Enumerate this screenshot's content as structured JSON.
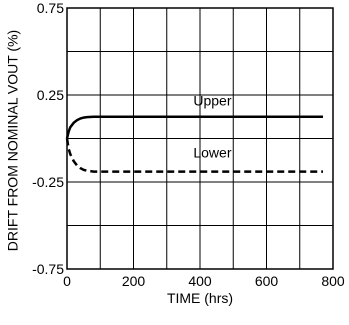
{
  "chart_data": {
    "type": "line",
    "title": "",
    "xlabel": "TIME (hrs)",
    "ylabel": "DRIFT FROM NOMINAL VOUT (%)",
    "xlim": [
      0,
      800
    ],
    "ylim": [
      -0.75,
      0.75
    ],
    "x_tick_labels": [
      "0",
      "200",
      "400",
      "600",
      "800"
    ],
    "y_tick_labels": [
      "0.75",
      "0.25",
      "-0.25",
      "-0.75"
    ],
    "grid": true,
    "series": [
      {
        "name": "Upper",
        "style": "solid",
        "x": [
          0,
          5,
          10,
          20,
          30,
          40,
          50,
          60,
          80,
          100,
          200,
          300,
          400,
          500,
          600,
          700,
          770
        ],
        "y": [
          0.0,
          0.04,
          0.065,
          0.09,
          0.105,
          0.115,
          0.12,
          0.123,
          0.125,
          0.125,
          0.125,
          0.125,
          0.125,
          0.125,
          0.125,
          0.125,
          0.125
        ]
      },
      {
        "name": "Lower",
        "style": "dashed",
        "x": [
          0,
          5,
          10,
          20,
          30,
          40,
          50,
          60,
          80,
          100,
          200,
          300,
          400,
          500,
          600,
          700,
          770
        ],
        "y": [
          0.0,
          -0.06,
          -0.09,
          -0.13,
          -0.155,
          -0.17,
          -0.18,
          -0.185,
          -0.19,
          -0.19,
          -0.19,
          -0.19,
          -0.19,
          -0.19,
          -0.19,
          -0.19,
          -0.19
        ]
      }
    ],
    "annotations": [
      {
        "text": "Upper",
        "x": 380,
        "y": 0.19
      },
      {
        "text": "Lower",
        "x": 380,
        "y": -0.11
      }
    ]
  }
}
